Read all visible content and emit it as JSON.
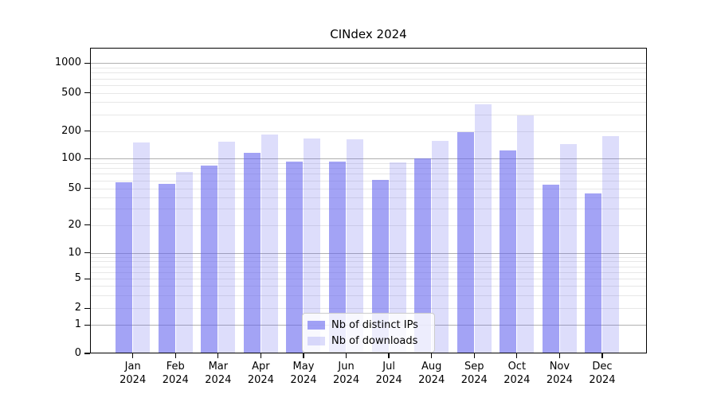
{
  "chart_data": {
    "type": "bar",
    "title": "CINdex 2024",
    "categories": [
      "Jan 2024",
      "Feb 2024",
      "Mar 2024",
      "Apr 2024",
      "May 2024",
      "Jun 2024",
      "Jul 2024",
      "Aug 2024",
      "Sep 2024",
      "Oct 2024",
      "Nov 2024",
      "Dec 2024"
    ],
    "series": [
      {
        "name": "Nb of distinct IPs",
        "color": "#6666ee",
        "alpha": 0.6,
        "values": [
          57,
          55,
          85,
          115,
          93,
          94,
          61,
          100,
          195,
          123,
          54,
          44
        ]
      },
      {
        "name": "Nb of downloads",
        "color": "#6666ee",
        "alpha": 0.22,
        "values": [
          150,
          73,
          155,
          183,
          168,
          162,
          92,
          158,
          380,
          290,
          144,
          178
        ]
      }
    ],
    "xlabel": "",
    "ylabel": "",
    "yscale": "symlog",
    "yticks": [
      0,
      1,
      2,
      5,
      10,
      20,
      50,
      100,
      200,
      500,
      1000
    ],
    "ylim": [
      0,
      1450
    ],
    "grid": "both",
    "legend_position": "lower-center",
    "colors": {
      "major_grid": "#b0b0b0",
      "minor_grid": "#e7e7e7",
      "axis": "#000000",
      "background": "#ffffff"
    }
  }
}
